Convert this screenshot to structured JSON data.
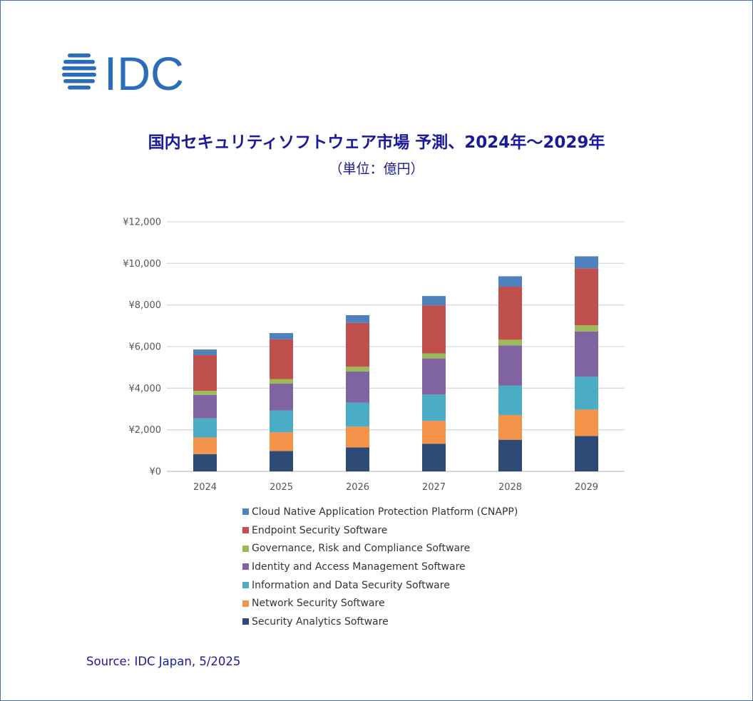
{
  "brand": {
    "logo_text": "IDC",
    "logo_color": "#2a6ebb"
  },
  "header": {
    "title": "国内セキュリティソフトウェア市場 予測、2024年～2029年",
    "subtitle": "（単位：億円）"
  },
  "footer": {
    "source": "Source: IDC Japan, 5/2025"
  },
  "chart_data": {
    "type": "bar",
    "stacked": true,
    "title": "国内セキュリティソフトウェア市場 予測、2024年～2029年",
    "subtitle": "（単位：億円）",
    "xlabel": "",
    "ylabel": "",
    "categories": [
      "2024",
      "2025",
      "2026",
      "2027",
      "2028",
      "2029"
    ],
    "ylim": [
      0,
      12000
    ],
    "y_ticks": [
      0,
      2000,
      4000,
      6000,
      8000,
      10000,
      12000
    ],
    "y_tick_labels": [
      "¥0",
      "¥2,000",
      "¥4,000",
      "¥6,000",
      "¥8,000",
      "¥10,000",
      "¥12,000"
    ],
    "grid": true,
    "legend_position": "bottom",
    "series": [
      {
        "name": "Security Analytics Software",
        "color": "#2e4b78",
        "values": [
          830,
          980,
          1150,
          1330,
          1520,
          1700
        ]
      },
      {
        "name": "Network Security Software",
        "color": "#f4944a",
        "values": [
          800,
          900,
          1000,
          1100,
          1190,
          1270
        ]
      },
      {
        "name": "Information and Data Security Software",
        "color": "#4bacc6",
        "values": [
          920,
          1050,
          1150,
          1270,
          1420,
          1580
        ]
      },
      {
        "name": "Identity and Access Management Software",
        "color": "#8064a2",
        "values": [
          1130,
          1290,
          1500,
          1730,
          1930,
          2180
        ]
      },
      {
        "name": "Governance, Risk and Compliance Software",
        "color": "#9bbb59",
        "values": [
          190,
          220,
          230,
          240,
          270,
          290
        ]
      },
      {
        "name": "Endpoint Security Software",
        "color": "#c0504d",
        "values": [
          1720,
          1910,
          2110,
          2310,
          2550,
          2740
        ]
      },
      {
        "name": "Cloud Native Application Protection Platform (CNAPP)",
        "color": "#4f81bd",
        "values": [
          270,
          300,
          370,
          450,
          500,
          580
        ]
      }
    ]
  }
}
